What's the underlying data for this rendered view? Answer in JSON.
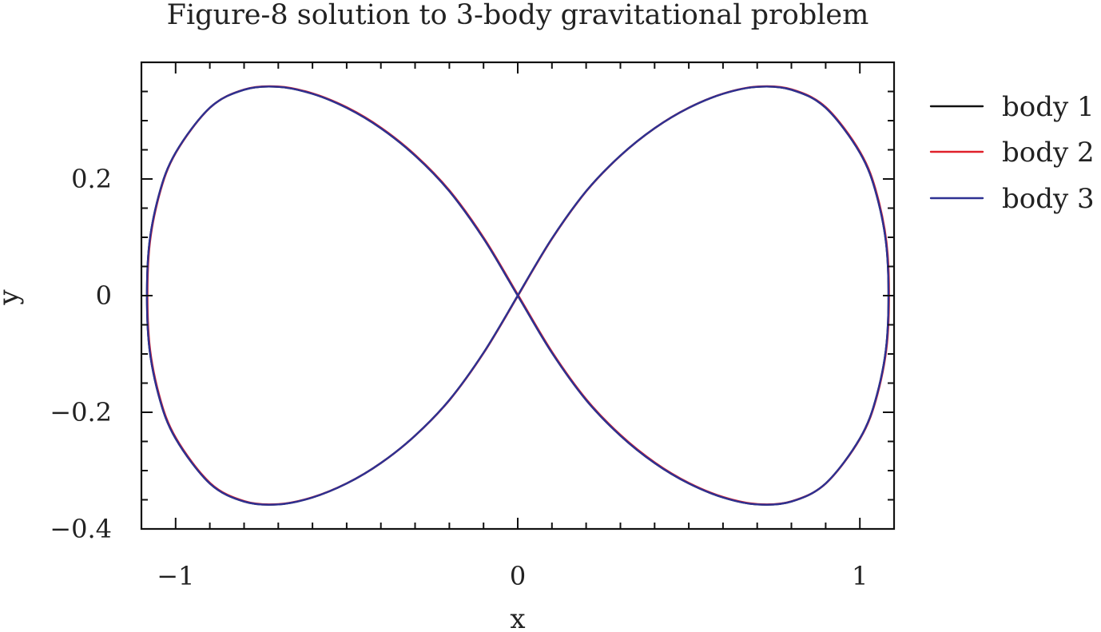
{
  "chart_data": {
    "type": "line",
    "title": "Figure-8 solution to 3-body gravitational problem",
    "xlabel": "x",
    "ylabel": "y",
    "xlim": [
      -1.1,
      1.1
    ],
    "ylim": [
      -0.4,
      0.4
    ],
    "x_ticks": [
      -1,
      0,
      1
    ],
    "x_tick_labels": [
      "−1",
      "0",
      "1"
    ],
    "y_ticks": [
      -0.4,
      -0.2,
      0,
      0.2
    ],
    "y_tick_labels": [
      "−0.4",
      "−0.2",
      "0",
      "0.2"
    ],
    "grid": false,
    "legend_position": "outside-right",
    "curve": {
      "x": [
        0,
        0.1,
        0.2,
        0.3,
        0.4,
        0.5,
        0.6,
        0.7,
        0.8,
        0.9,
        1.0,
        1.05,
        1.08,
        1.08,
        1.05,
        1.0,
        0.9,
        0.8,
        0.7,
        0.6,
        0.5,
        0.4,
        0.3,
        0.2,
        0.1,
        0,
        -0.1,
        -0.2,
        -0.3,
        -0.4,
        -0.5,
        -0.6,
        -0.7,
        -0.8,
        -0.9,
        -1.0,
        -1.05,
        -1.08,
        -1.08,
        -1.05,
        -1.0,
        -0.9,
        -0.8,
        -0.7,
        -0.6,
        -0.5,
        -0.4,
        -0.3,
        -0.2,
        -0.1,
        0
      ],
      "y": [
        0,
        0.098,
        0.179,
        0.24,
        0.287,
        0.322,
        0.346,
        0.358,
        0.353,
        0.322,
        0.245,
        0.17,
        0.07,
        -0.07,
        -0.17,
        -0.245,
        -0.322,
        -0.353,
        -0.358,
        -0.346,
        -0.322,
        -0.287,
        -0.24,
        -0.179,
        -0.098,
        0,
        0.098,
        0.179,
        0.24,
        0.287,
        0.322,
        0.346,
        0.358,
        0.353,
        0.322,
        0.245,
        0.17,
        0.07,
        -0.07,
        -0.17,
        -0.245,
        -0.322,
        -0.353,
        -0.358,
        -0.346,
        -0.322,
        -0.287,
        -0.24,
        -0.179,
        -0.098,
        0
      ]
    },
    "series": [
      {
        "name": "body 1",
        "color": "#111111"
      },
      {
        "name": "body 2",
        "color": "#e0202a"
      },
      {
        "name": "body 3",
        "color": "#2e3192"
      }
    ]
  }
}
